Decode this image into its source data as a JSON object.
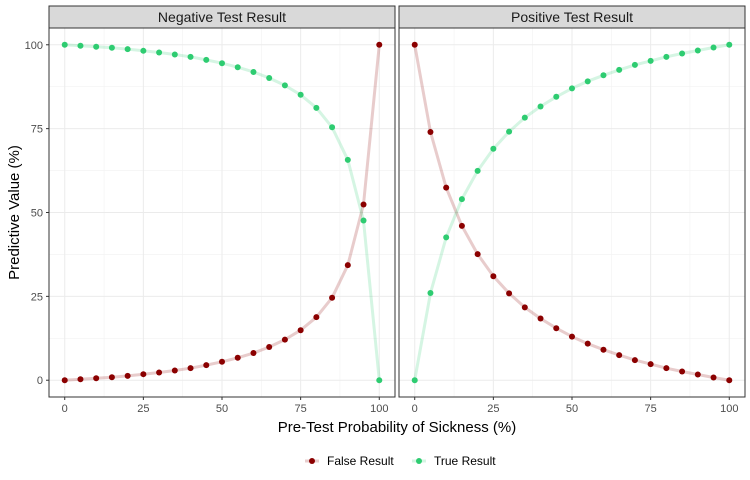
{
  "chart_data": {
    "type": "line",
    "xlabel": "Pre-Test Probability of Sickness (%)",
    "ylabel": "Predictive Value (%)",
    "xlim": [
      -5,
      105
    ],
    "ylim": [
      -5,
      105
    ],
    "x_ticks": [
      0,
      25,
      50,
      75,
      100
    ],
    "y_ticks": [
      0,
      25,
      50,
      75,
      100
    ],
    "grid": true,
    "legend_position": "bottom",
    "x": [
      0,
      5,
      10,
      15,
      20,
      25,
      30,
      35,
      40,
      45,
      50,
      55,
      60,
      65,
      70,
      75,
      80,
      85,
      90,
      95,
      100
    ],
    "panels": [
      {
        "title": "Negative Test Result",
        "series": [
          {
            "name": "False Result",
            "color": "#8b0000",
            "values": [
              0,
              0.3,
              0.6,
              0.9,
              1.3,
              1.8,
              2.3,
              2.9,
              3.6,
              4.5,
              5.5,
              6.7,
              8.1,
              9.9,
              12.1,
              14.9,
              18.8,
              24.6,
              34.3,
              52.4,
              100
            ]
          },
          {
            "name": "True Result",
            "color": "#2ecc71",
            "values": [
              100,
              99.7,
              99.4,
              99.1,
              98.7,
              98.2,
              97.7,
              97.1,
              96.4,
              95.5,
              94.5,
              93.3,
              91.9,
              90.1,
              87.9,
              85.1,
              81.2,
              75.4,
              65.7,
              47.6,
              0
            ]
          }
        ]
      },
      {
        "title": "Positive Test Result",
        "series": [
          {
            "name": "False Result",
            "color": "#8b0000",
            "values": [
              100,
              74,
              57.4,
              46,
              37.6,
              31,
              25.9,
              21.7,
              18.4,
              15.5,
              13,
              10.9,
              9.1,
              7.5,
              6,
              4.8,
              3.6,
              2.6,
              1.7,
              0.8,
              0
            ]
          },
          {
            "name": "True Result",
            "color": "#2ecc71",
            "values": [
              0,
              26,
              42.6,
              54,
              62.4,
              69,
              74.1,
              78.3,
              81.6,
              84.5,
              87,
              89.1,
              90.9,
              92.5,
              94,
              95.2,
              96.4,
              97.4,
              98.3,
              99.2,
              100
            ]
          }
        ]
      }
    ],
    "legend": [
      {
        "label": "False Result",
        "color": "#8b0000"
      },
      {
        "label": "True Result",
        "color": "#2ecc71"
      }
    ]
  }
}
